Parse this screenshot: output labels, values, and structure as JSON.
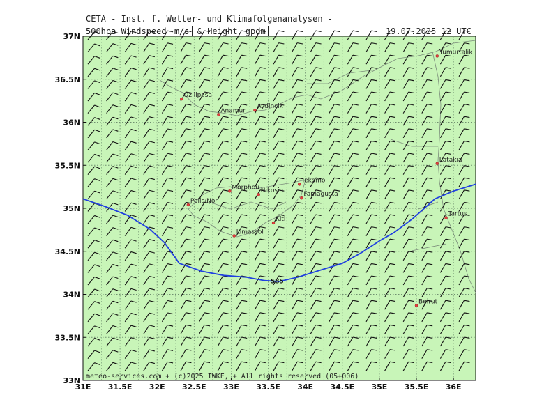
{
  "header": {
    "org": "CETA - Inst. f. Wetter- und Klimafolgenanalysen -",
    "param_name": "500hpa Windspeed",
    "unit1": "m/s",
    "amp": "& Height",
    "unit2": "gpdm",
    "datetime": "19.07.2025 12 UTC"
  },
  "map": {
    "background": "#c8f5b8",
    "contour_color": "#1f3fe0",
    "barb_color": "#111111",
    "lon_range": [
      31,
      36.3
    ],
    "lat_range": [
      33,
      37
    ],
    "lon_ticks": [
      "31E",
      "31.5E",
      "32E",
      "32.5E",
      "33E",
      "33.5E",
      "34E",
      "34.5E",
      "35E",
      "35.5E",
      "36E"
    ],
    "lat_ticks": [
      "37N",
      "36.5N",
      "36N",
      "35.5N",
      "35N",
      "34.5N",
      "34N",
      "33.5N",
      "33N"
    ],
    "contour_label": "585",
    "cities": [
      {
        "name": "Yumurtalik",
        "lon": 35.78,
        "lat": 36.77
      },
      {
        "name": "Ozilipasa",
        "lon": 32.33,
        "lat": 36.27
      },
      {
        "name": "Anamur",
        "lon": 32.83,
        "lat": 36.09
      },
      {
        "name": "Aydincik",
        "lon": 33.32,
        "lat": 36.14
      },
      {
        "name": "Latakia",
        "lon": 35.78,
        "lat": 35.52
      },
      {
        "name": "Tekomo",
        "lon": 33.92,
        "lat": 35.28
      },
      {
        "name": "Morphou",
        "lon": 32.98,
        "lat": 35.2
      },
      {
        "name": "Nikosia",
        "lon": 33.37,
        "lat": 35.16
      },
      {
        "name": "Famagusta",
        "lon": 33.95,
        "lat": 35.12
      },
      {
        "name": "Polis/Nor",
        "lon": 32.42,
        "lat": 35.04
      },
      {
        "name": "Kiti",
        "lon": 33.57,
        "lat": 34.83
      },
      {
        "name": "Tartus",
        "lon": 35.9,
        "lat": 34.89
      },
      {
        "name": "Limassol",
        "lon": 33.04,
        "lat": 34.68
      },
      {
        "name": "Beirut",
        "lon": 35.5,
        "lat": 33.87
      }
    ],
    "credit": "meteo-services.com + (c)2025 IWKF, + All rights reserved (05+006)"
  }
}
